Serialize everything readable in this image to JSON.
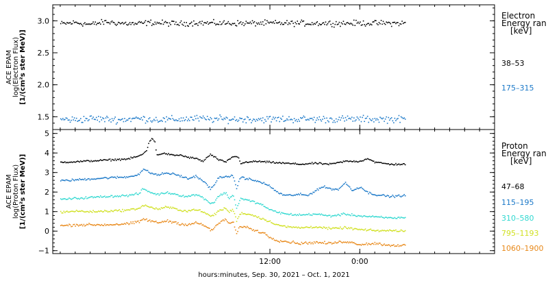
{
  "chart_data": [
    {
      "type": "scatter",
      "ylabel_lines": [
        "ACE EPAM",
        "log(Electron Flux)",
        "[1/(cm²s ster MeV)]"
      ],
      "ylim": [
        1.3,
        3.25
      ],
      "yticks": [
        1.5,
        2.0,
        2.5,
        3.0
      ],
      "ytick_labels": [
        "1.5",
        "2.0",
        "2.5",
        "3.0"
      ],
      "legend_title_lines": [
        "Electron",
        "Energy range",
        "[keV]"
      ],
      "series": [
        {
          "name": "38–53",
          "color": "#000000",
          "mean": 2.97,
          "noise": 0.04,
          "points": [
            [
              -16,
              2.96
            ],
            [
              -14,
              2.98
            ],
            [
              -12,
              2.95
            ],
            [
              -10,
              2.99
            ],
            [
              -8,
              2.97
            ],
            [
              -6,
              2.96
            ],
            [
              -4,
              2.98
            ],
            [
              -2,
              2.97
            ],
            [
              0,
              2.96
            ],
            [
              2,
              2.98
            ],
            [
              3.8,
              2.97
            ]
          ]
        },
        {
          "name": "175–315",
          "color": "#1a78c8",
          "mean": 1.47,
          "noise": 0.05,
          "points": [
            [
              -16,
              1.47
            ],
            [
              -14,
              1.46
            ],
            [
              -12,
              1.48
            ],
            [
              -10,
              1.47
            ],
            [
              -8,
              1.46
            ],
            [
              -6,
              1.48
            ],
            [
              -4,
              1.47
            ],
            [
              -2,
              1.46
            ],
            [
              0,
              1.47
            ],
            [
              2,
              1.48
            ],
            [
              3.8,
              1.47
            ]
          ]
        }
      ]
    },
    {
      "type": "scatter",
      "ylabel_lines": [
        "ACE EPAM",
        "log(Proton Flux)",
        "[1/(cm²s ster MeV)]"
      ],
      "ylim": [
        -1.15,
        5.2
      ],
      "yticks": [
        -1,
        0,
        1,
        2,
        3,
        4,
        5
      ],
      "ytick_labels": [
        "−1",
        "0",
        "1",
        "2",
        "3",
        "4",
        "5"
      ],
      "legend_title_lines": [
        "Proton",
        "Energy range",
        "[keV]"
      ],
      "series": [
        {
          "name": "47–68",
          "color": "#000000",
          "noise": 0.04,
          "points": [
            [
              -16,
              3.55
            ],
            [
              -14,
              3.58
            ],
            [
              -12,
              3.62
            ],
            [
              -10,
              3.66
            ],
            [
              -7,
              3.72
            ],
            [
              -5.3,
              3.9
            ],
            [
              -4.5,
              4.15
            ],
            [
              -4.2,
              4.6
            ],
            [
              -3.8,
              4.8
            ],
            [
              -3.4,
              4.55
            ],
            [
              -3.2,
              3.95
            ],
            [
              -2,
              4.0
            ],
            [
              -1,
              3.9
            ],
            [
              0,
              3.92
            ],
            [
              1,
              3.8
            ],
            [
              2,
              3.75
            ],
            [
              3,
              3.6
            ],
            [
              4,
              3.95
            ],
            [
              5,
              3.7
            ],
            [
              6,
              3.55
            ],
            [
              7,
              3.85
            ],
            [
              7.8,
              3.8
            ],
            [
              8,
              3.5
            ],
            [
              10,
              3.6
            ],
            [
              12,
              3.55
            ],
            [
              14,
              3.5
            ],
            [
              16,
              3.45
            ],
            [
              18,
              3.5
            ],
            [
              20,
              3.45
            ],
            [
              22,
              3.6
            ],
            [
              24,
              3.6
            ],
            [
              25,
              3.75
            ],
            [
              26,
              3.55
            ],
            [
              27,
              3.5
            ],
            [
              28,
              3.45
            ],
            [
              30,
              3.45
            ]
          ]
        },
        {
          "name": "115–195",
          "color": "#1a78c8",
          "noise": 0.05,
          "points": [
            [
              -16,
              2.6
            ],
            [
              -14,
              2.65
            ],
            [
              -12,
              2.7
            ],
            [
              -10,
              2.75
            ],
            [
              -7,
              2.8
            ],
            [
              -5.5,
              2.95
            ],
            [
              -5,
              3.2
            ],
            [
              -4,
              3.0
            ],
            [
              -3,
              2.9
            ],
            [
              -2,
              3.0
            ],
            [
              -1,
              2.95
            ],
            [
              0,
              2.85
            ],
            [
              1,
              2.7
            ],
            [
              2,
              2.85
            ],
            [
              3,
              2.6
            ],
            [
              4,
              2.2
            ],
            [
              4.5,
              2.35
            ],
            [
              5,
              2.75
            ],
            [
              6,
              2.85
            ],
            [
              6.5,
              2.75
            ],
            [
              7,
              2.9
            ],
            [
              7.5,
              2.2
            ],
            [
              8,
              2.8
            ],
            [
              9,
              2.7
            ],
            [
              10,
              2.6
            ],
            [
              11,
              2.5
            ],
            [
              12,
              2.3
            ],
            [
              13,
              2.0
            ],
            [
              14,
              1.85
            ],
            [
              16,
              1.9
            ],
            [
              17,
              1.85
            ],
            [
              18,
              2.1
            ],
            [
              19,
              2.3
            ],
            [
              20,
              2.2
            ],
            [
              21,
              2.15
            ],
            [
              22,
              2.5
            ],
            [
              23,
              2.1
            ],
            [
              24,
              2.3
            ],
            [
              25,
              2.0
            ],
            [
              26,
              1.9
            ],
            [
              28,
              1.8
            ],
            [
              30,
              1.85
            ]
          ]
        },
        {
          "name": "310–580",
          "color": "#30d8d0",
          "noise": 0.05,
          "points": [
            [
              -16,
              1.65
            ],
            [
              -14,
              1.7
            ],
            [
              -12,
              1.75
            ],
            [
              -10,
              1.8
            ],
            [
              -7,
              1.85
            ],
            [
              -5.5,
              1.95
            ],
            [
              -5,
              2.2
            ],
            [
              -4,
              2.0
            ],
            [
              -3,
              1.9
            ],
            [
              -2,
              2.0
            ],
            [
              -1,
              1.95
            ],
            [
              0,
              1.85
            ],
            [
              1,
              1.8
            ],
            [
              2,
              1.9
            ],
            [
              3,
              1.75
            ],
            [
              4,
              1.45
            ],
            [
              4.5,
              1.5
            ],
            [
              5,
              1.8
            ],
            [
              6,
              2.0
            ],
            [
              6.5,
              1.7
            ],
            [
              7,
              1.9
            ],
            [
              7.5,
              1.2
            ],
            [
              8,
              1.7
            ],
            [
              9,
              1.6
            ],
            [
              10,
              1.5
            ],
            [
              11,
              1.35
            ],
            [
              12,
              1.1
            ],
            [
              13,
              1.0
            ],
            [
              14,
              0.9
            ],
            [
              16,
              0.85
            ],
            [
              18,
              0.9
            ],
            [
              20,
              0.8
            ],
            [
              22,
              0.9
            ],
            [
              24,
              0.8
            ],
            [
              26,
              0.75
            ],
            [
              28,
              0.7
            ],
            [
              30,
              0.72
            ]
          ]
        },
        {
          "name": "795–1193",
          "color": "#d0e020",
          "noise": 0.05,
          "points": [
            [
              -16,
              1.0
            ],
            [
              -14,
              1.05
            ],
            [
              -12,
              1.02
            ],
            [
              -10,
              1.05
            ],
            [
              -7,
              1.1
            ],
            [
              -5.5,
              1.2
            ],
            [
              -5,
              1.35
            ],
            [
              -4,
              1.25
            ],
            [
              -3,
              1.15
            ],
            [
              -2,
              1.25
            ],
            [
              -1,
              1.2
            ],
            [
              0,
              1.1
            ],
            [
              1,
              1.05
            ],
            [
              2,
              1.15
            ],
            [
              3,
              1.0
            ],
            [
              4,
              0.8
            ],
            [
              4.5,
              0.85
            ],
            [
              5,
              1.05
            ],
            [
              6,
              1.2
            ],
            [
              6.5,
              1.0
            ],
            [
              7,
              1.15
            ],
            [
              7.5,
              0.55
            ],
            [
              8,
              0.95
            ],
            [
              9,
              0.9
            ],
            [
              10,
              0.8
            ],
            [
              11,
              0.65
            ],
            [
              12,
              0.5
            ],
            [
              13,
              0.35
            ],
            [
              14,
              0.25
            ],
            [
              16,
              0.2
            ],
            [
              18,
              0.25
            ],
            [
              20,
              0.15
            ],
            [
              22,
              0.2
            ],
            [
              24,
              0.1
            ],
            [
              26,
              0.05
            ],
            [
              28,
              0.05
            ],
            [
              30,
              0.05
            ]
          ]
        },
        {
          "name": "1060–1900",
          "color": "#e88818",
          "noise": 0.06,
          "points": [
            [
              -16,
              0.3
            ],
            [
              -14,
              0.35
            ],
            [
              -12,
              0.35
            ],
            [
              -10,
              0.35
            ],
            [
              -7,
              0.4
            ],
            [
              -5.5,
              0.5
            ],
            [
              -5,
              0.65
            ],
            [
              -4,
              0.55
            ],
            [
              -3,
              0.45
            ],
            [
              -2,
              0.55
            ],
            [
              -1,
              0.5
            ],
            [
              0,
              0.4
            ],
            [
              1,
              0.35
            ],
            [
              2,
              0.45
            ],
            [
              3,
              0.35
            ],
            [
              4,
              0.1
            ],
            [
              4.5,
              0.15
            ],
            [
              5,
              0.4
            ],
            [
              6,
              0.65
            ],
            [
              6.5,
              0.4
            ],
            [
              7,
              0.5
            ],
            [
              7.5,
              -0.1
            ],
            [
              8,
              0.3
            ],
            [
              9,
              0.2
            ],
            [
              10,
              0.05
            ],
            [
              11,
              -0.05
            ],
            [
              12,
              -0.3
            ],
            [
              13,
              -0.45
            ],
            [
              14,
              -0.5
            ],
            [
              16,
              -0.6
            ],
            [
              18,
              -0.55
            ],
            [
              20,
              -0.6
            ],
            [
              22,
              -0.5
            ],
            [
              24,
              -0.65
            ],
            [
              26,
              -0.6
            ],
            [
              28,
              -0.7
            ],
            [
              30,
              -0.7
            ]
          ]
        }
      ]
    }
  ],
  "time_axis": {
    "xlim": [
      -17,
      42
    ],
    "data_end": 30,
    "ticks": [
      {
        "value": 12,
        "label": "12:00"
      },
      {
        "value": 24,
        "label": "0:00"
      }
    ],
    "minor_ticks": [
      -16,
      -14,
      -12,
      -10,
      -8,
      -6,
      -4,
      -2,
      0,
      2,
      4,
      6,
      8,
      10,
      12,
      14,
      16,
      18,
      20,
      22,
      24,
      26,
      28,
      30,
      32,
      34,
      36,
      38,
      40,
      42
    ],
    "xlabel": "hours:minutes, Sep. 30, 2021 – Oct. 1, 2021"
  },
  "display_legend": {
    "electron_items": [
      "38–53",
      "175–315"
    ],
    "proton_items": [
      "47–68",
      "115–195",
      "310–580",
      "795–1193",
      "1060–1900"
    ],
    "electron_title_lines": [
      "Electron",
      "Energy ran",
      "[keV]"
    ],
    "proton_title_lines": [
      "Proton",
      "Energy ran",
      "[keV]"
    ]
  }
}
